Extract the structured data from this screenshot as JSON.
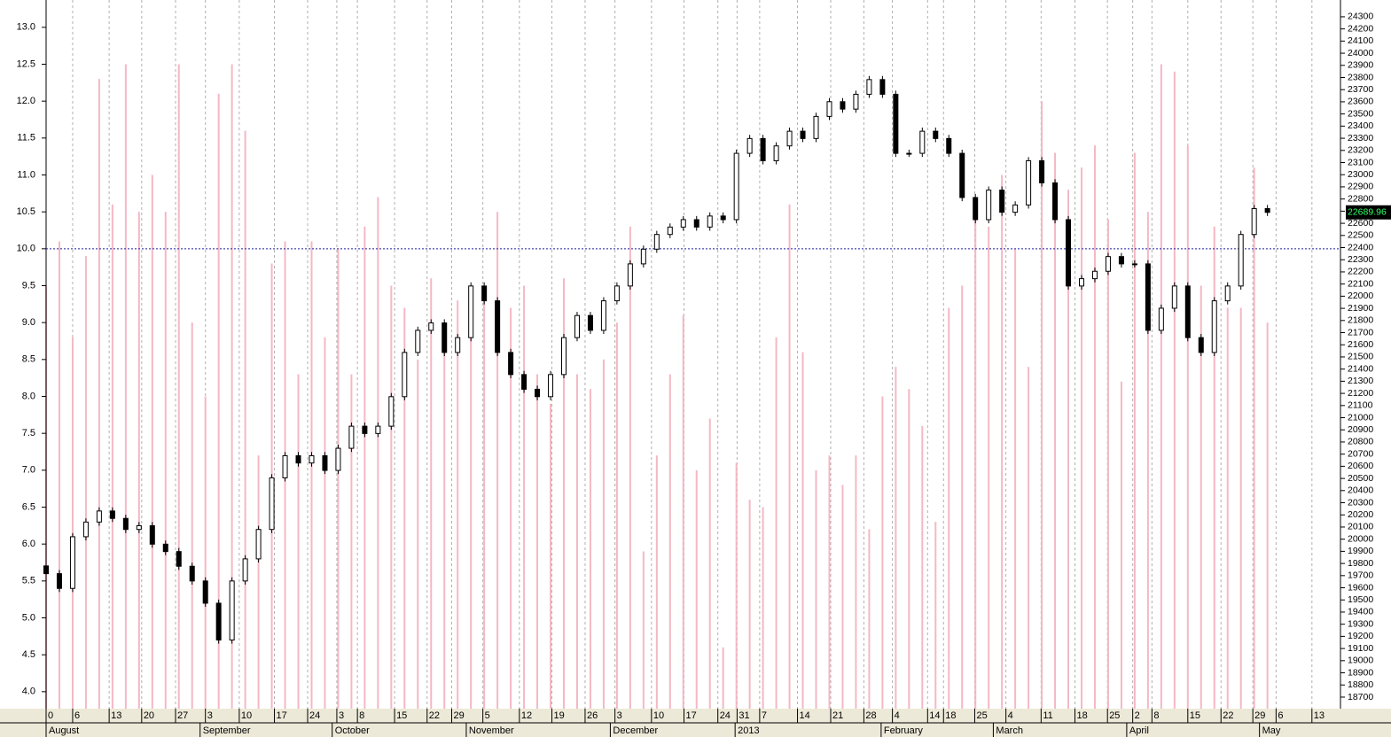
{
  "chart_data": {
    "type": "candlestick",
    "xlim": [
      0,
      195
    ],
    "xticks": [
      {
        "value": 0,
        "label": "0"
      },
      {
        "value": 4,
        "label": "6"
      },
      {
        "value": 9.5,
        "label": "13"
      },
      {
        "value": 14.4,
        "label": "20"
      },
      {
        "value": 19.5,
        "label": "27"
      },
      {
        "value": 24,
        "label": "3"
      },
      {
        "value": 29.1,
        "label": "10"
      },
      {
        "value": 34.4,
        "label": "17"
      },
      {
        "value": 39.4,
        "label": "24"
      },
      {
        "value": 43.8,
        "label": "3"
      },
      {
        "value": 46.9,
        "label": "8"
      },
      {
        "value": 52.5,
        "label": "15"
      },
      {
        "value": 57.4,
        "label": "22"
      },
      {
        "value": 61.1,
        "label": "29"
      },
      {
        "value": 65.8,
        "label": "5"
      },
      {
        "value": 71.3,
        "label": "12"
      },
      {
        "value": 76.2,
        "label": "19"
      },
      {
        "value": 81.2,
        "label": "26"
      },
      {
        "value": 85.7,
        "label": "3"
      },
      {
        "value": 91.2,
        "label": "10"
      },
      {
        "value": 96.1,
        "label": "17"
      },
      {
        "value": 101.2,
        "label": "24"
      },
      {
        "value": 104.1,
        "label": "31"
      },
      {
        "value": 107.5,
        "label": "7"
      },
      {
        "value": 113.2,
        "label": "14"
      },
      {
        "value": 118.2,
        "label": "21"
      },
      {
        "value": 123.2,
        "label": "28"
      },
      {
        "value": 127.5,
        "label": "4"
      },
      {
        "value": 132.8,
        "label": "14"
      },
      {
        "value": 135.2,
        "label": "18"
      },
      {
        "value": 139.9,
        "label": "25"
      },
      {
        "value": 144.6,
        "label": "4"
      },
      {
        "value": 149.9,
        "label": "11"
      },
      {
        "value": 155,
        "label": "18"
      },
      {
        "value": 159.9,
        "label": "25"
      },
      {
        "value": 163.7,
        "label": "2"
      },
      {
        "value": 166.6,
        "label": "8"
      },
      {
        "value": 172,
        "label": "15"
      },
      {
        "value": 177,
        "label": "22"
      },
      {
        "value": 181.8,
        "label": "29"
      },
      {
        "value": 185.3,
        "label": "6"
      },
      {
        "value": 190.7,
        "label": "13"
      }
    ],
    "months": [
      {
        "value": 0.4,
        "label": "August"
      },
      {
        "value": 23.6,
        "label": "September"
      },
      {
        "value": 43.5,
        "label": "October"
      },
      {
        "value": 63.7,
        "label": "November"
      },
      {
        "value": 85.4,
        "label": "December"
      },
      {
        "value": 104.2,
        "label": "2013"
      },
      {
        "value": 126.2,
        "label": "February"
      },
      {
        "value": 143.1,
        "label": "March"
      },
      {
        "value": 163.2,
        "label": "April"
      },
      {
        "value": 183.2,
        "label": "May"
      }
    ],
    "ylim": [
      3.77,
      13.37
    ],
    "yticks": [
      {
        "value": 4,
        "label": "4.0"
      },
      {
        "value": 4.5,
        "label": "4.5"
      },
      {
        "value": 5,
        "label": "5.0"
      },
      {
        "value": 5.5,
        "label": "5.5"
      },
      {
        "value": 6,
        "label": "6.0"
      },
      {
        "value": 6.5,
        "label": "6.5"
      },
      {
        "value": 7,
        "label": "7.0"
      },
      {
        "value": 7.5,
        "label": "7.5"
      },
      {
        "value": 8,
        "label": "8.0"
      },
      {
        "value": 8.5,
        "label": "8.5"
      },
      {
        "value": 9,
        "label": "9.0"
      },
      {
        "value": 9.5,
        "label": "9.5"
      },
      {
        "value": 10,
        "label": "10.0"
      },
      {
        "value": 10.5,
        "label": "10.5"
      },
      {
        "value": 11,
        "label": "11.0"
      },
      {
        "value": 11.5,
        "label": "11.5"
      },
      {
        "value": 12,
        "label": "12.0"
      },
      {
        "value": 12.5,
        "label": "12.5"
      },
      {
        "value": 13,
        "label": "13.0"
      }
    ],
    "reference_line": 10,
    "y2lim": [
      18605,
      24438
    ],
    "y2ticks": [
      18700,
      18800,
      18900,
      19000,
      19100,
      19200,
      19300,
      19400,
      19500,
      19600,
      19700,
      19800,
      19900,
      20000,
      20100,
      20200,
      20300,
      20400,
      20500,
      20600,
      20700,
      20800,
      20900,
      21000,
      21100,
      21200,
      21300,
      21400,
      21500,
      21600,
      21700,
      21800,
      21900,
      22000,
      22100,
      22200,
      22300,
      22400,
      22500,
      22600,
      22700,
      22800,
      22900,
      23000,
      23100,
      23200,
      23300,
      23400,
      23500,
      23600,
      23700,
      23800,
      23900,
      24000,
      24100,
      24200,
      24300
    ],
    "volume_color": "#f4b8c4",
    "candles_axis": "y2",
    "candles": [
      [
        0,
        19780,
        19810,
        19686,
        19716
      ],
      [
        2,
        19716,
        19746,
        19565,
        19595
      ],
      [
        4,
        19595,
        20050,
        19565,
        20020
      ],
      [
        6,
        20020,
        20171,
        19990,
        20141
      ],
      [
        8,
        20141,
        20262,
        20111,
        20232
      ],
      [
        10,
        20232,
        20262,
        20141,
        20171
      ],
      [
        12,
        20171,
        20201,
        20050,
        20080
      ],
      [
        14,
        20080,
        20141,
        20050,
        20111
      ],
      [
        16,
        20111,
        20141,
        19929,
        19959
      ],
      [
        18,
        19959,
        19989,
        19868,
        19898
      ],
      [
        20,
        19898,
        19928,
        19747,
        19777
      ],
      [
        22,
        19777,
        19807,
        19626,
        19656
      ],
      [
        24,
        19656,
        19686,
        19443,
        19473
      ],
      [
        26,
        19473,
        19503,
        19140,
        19170
      ],
      [
        28,
        19170,
        19686,
        19140,
        19656
      ],
      [
        30,
        19656,
        19868,
        19626,
        19838
      ],
      [
        32,
        19838,
        20110,
        19808,
        20080
      ],
      [
        34,
        20080,
        20535,
        20050,
        20505
      ],
      [
        36,
        20505,
        20717,
        20475,
        20687
      ],
      [
        38,
        20687,
        20717,
        20597,
        20627
      ],
      [
        40,
        20627,
        20717,
        20597,
        20687
      ],
      [
        42,
        20687,
        20717,
        20536,
        20566
      ],
      [
        44,
        20566,
        20778,
        20536,
        20748
      ],
      [
        46,
        20748,
        20960,
        20718,
        20930
      ],
      [
        48,
        20930,
        20960,
        20840,
        20870
      ],
      [
        50,
        20870,
        20960,
        20840,
        20930
      ],
      [
        52,
        20930,
        21203,
        20900,
        21173
      ],
      [
        54,
        21173,
        21567,
        21143,
        21537
      ],
      [
        56,
        21537,
        21749,
        21507,
        21719
      ],
      [
        58,
        21719,
        21810,
        21689,
        21780
      ],
      [
        60,
        21780,
        21810,
        21507,
        21537
      ],
      [
        62,
        21537,
        21689,
        21507,
        21659
      ],
      [
        64,
        21659,
        22114,
        21629,
        22084
      ],
      [
        66,
        22084,
        22114,
        21932,
        21962
      ],
      [
        68,
        21962,
        21992,
        21507,
        21537
      ],
      [
        70,
        21537,
        21567,
        21325,
        21355
      ],
      [
        72,
        21355,
        21385,
        21204,
        21234
      ],
      [
        74,
        21234,
        21264,
        21143,
        21173
      ],
      [
        76,
        21173,
        21385,
        21143,
        21355
      ],
      [
        78,
        21355,
        21689,
        21325,
        21659
      ],
      [
        80,
        21659,
        21871,
        21629,
        21841
      ],
      [
        82,
        21841,
        21871,
        21689,
        21719
      ],
      [
        84,
        21719,
        21992,
        21689,
        21962
      ],
      [
        86,
        21962,
        22114,
        21932,
        22084
      ],
      [
        88,
        22084,
        22296,
        22054,
        22266
      ],
      [
        90,
        22266,
        22417,
        22236,
        22387
      ],
      [
        92,
        22387,
        22538,
        22357,
        22508
      ],
      [
        94,
        22508,
        22599,
        22478,
        22569
      ],
      [
        96,
        22569,
        22660,
        22539,
        22630
      ],
      [
        98,
        22630,
        22660,
        22539,
        22569
      ],
      [
        100,
        22569,
        22690,
        22539,
        22660
      ],
      [
        102,
        22660,
        22690,
        22600,
        22630
      ],
      [
        104,
        22630,
        23206,
        22600,
        23176
      ],
      [
        106,
        23176,
        23328,
        23146,
        23298
      ],
      [
        108,
        23298,
        23328,
        23085,
        23115
      ],
      [
        110,
        23115,
        23267,
        23085,
        23237
      ],
      [
        112,
        23237,
        23388,
        23207,
        23358
      ],
      [
        114,
        23358,
        23388,
        23268,
        23298
      ],
      [
        116,
        23298,
        23510,
        23268,
        23480
      ],
      [
        118,
        23480,
        23631,
        23450,
        23601
      ],
      [
        120,
        23601,
        23631,
        23510,
        23540
      ],
      [
        122,
        23540,
        23692,
        23510,
        23662
      ],
      [
        124,
        23662,
        23813,
        23632,
        23783
      ],
      [
        126,
        23783,
        23813,
        23632,
        23662
      ],
      [
        128,
        23662,
        23692,
        23146,
        23176
      ],
      [
        130,
        23176,
        23206,
        23146,
        23176
      ],
      [
        132,
        23176,
        23388,
        23146,
        23358
      ],
      [
        134,
        23358,
        23388,
        23268,
        23298
      ],
      [
        136,
        23298,
        23328,
        23146,
        23176
      ],
      [
        138,
        23176,
        23206,
        22782,
        22812
      ],
      [
        140,
        22812,
        22842,
        22600,
        22630
      ],
      [
        142,
        22630,
        22903,
        22600,
        22873
      ],
      [
        144,
        22873,
        22903,
        22661,
        22691
      ],
      [
        146,
        22691,
        22781,
        22661,
        22751
      ],
      [
        148,
        22751,
        23145,
        22721,
        23115
      ],
      [
        150,
        23115,
        23145,
        22903,
        22933
      ],
      [
        152,
        22933,
        22963,
        22600,
        22630
      ],
      [
        154,
        22630,
        22660,
        22054,
        22084
      ],
      [
        156,
        22084,
        22174,
        22054,
        22144
      ],
      [
        158,
        22144,
        22235,
        22114,
        22205
      ],
      [
        160,
        22205,
        22356,
        22175,
        22326
      ],
      [
        162,
        22326,
        22356,
        22236,
        22266
      ],
      [
        164,
        22266,
        22296,
        22236,
        22266
      ],
      [
        166,
        22266,
        22296,
        21689,
        21719
      ],
      [
        168,
        21719,
        21931,
        21689,
        21901
      ],
      [
        170,
        21901,
        22114,
        21871,
        22084
      ],
      [
        172,
        22084,
        22114,
        21629,
        21659
      ],
      [
        174,
        21659,
        21689,
        21507,
        21537
      ],
      [
        176,
        21537,
        21992,
        21507,
        21962
      ],
      [
        178,
        21962,
        22114,
        21932,
        22084
      ],
      [
        180,
        22084,
        22538,
        22054,
        22508
      ],
      [
        182,
        22508,
        22751,
        22478,
        22721
      ],
      [
        184,
        22721,
        22751,
        22660,
        22689.96
      ]
    ],
    "volume": [
      9.5,
      10.1,
      8.8,
      9.9,
      12.3,
      10.6,
      12.5,
      10.5,
      11.0,
      10.5,
      12.5,
      9.0,
      8.0,
      12.1,
      12.5,
      11.6,
      7.2,
      9.8,
      10.1,
      8.3,
      10.1,
      8.8,
      10.0,
      8.3,
      10.3,
      10.7,
      9.5,
      9.2,
      8.5,
      9.6,
      9.0,
      9.3,
      9.0,
      9.5,
      10.5,
      9.2,
      9.5,
      8.3,
      7.9,
      9.6,
      8.3,
      8.1,
      8.5,
      9.0,
      10.3,
      5.9,
      7.2,
      8.3,
      9.1,
      7.0,
      7.7,
      4.6,
      7.1,
      6.6,
      6.5,
      8.8,
      10.6,
      8.6,
      7.0,
      7.2,
      6.8,
      7.2,
      6.2,
      8.0,
      8.4,
      8.1,
      7.6,
      6.3,
      9.2,
      9.5,
      10.4,
      10.3,
      11.0,
      10.0,
      8.4,
      12.0,
      11.3,
      10.8,
      11.1,
      11.4,
      10.4,
      8.2,
      11.3,
      10.5,
      12.5,
      12.4,
      11.4,
      9.5,
      10.3,
      9.2,
      9.2,
      11.1,
      9.0
    ]
  }
}
